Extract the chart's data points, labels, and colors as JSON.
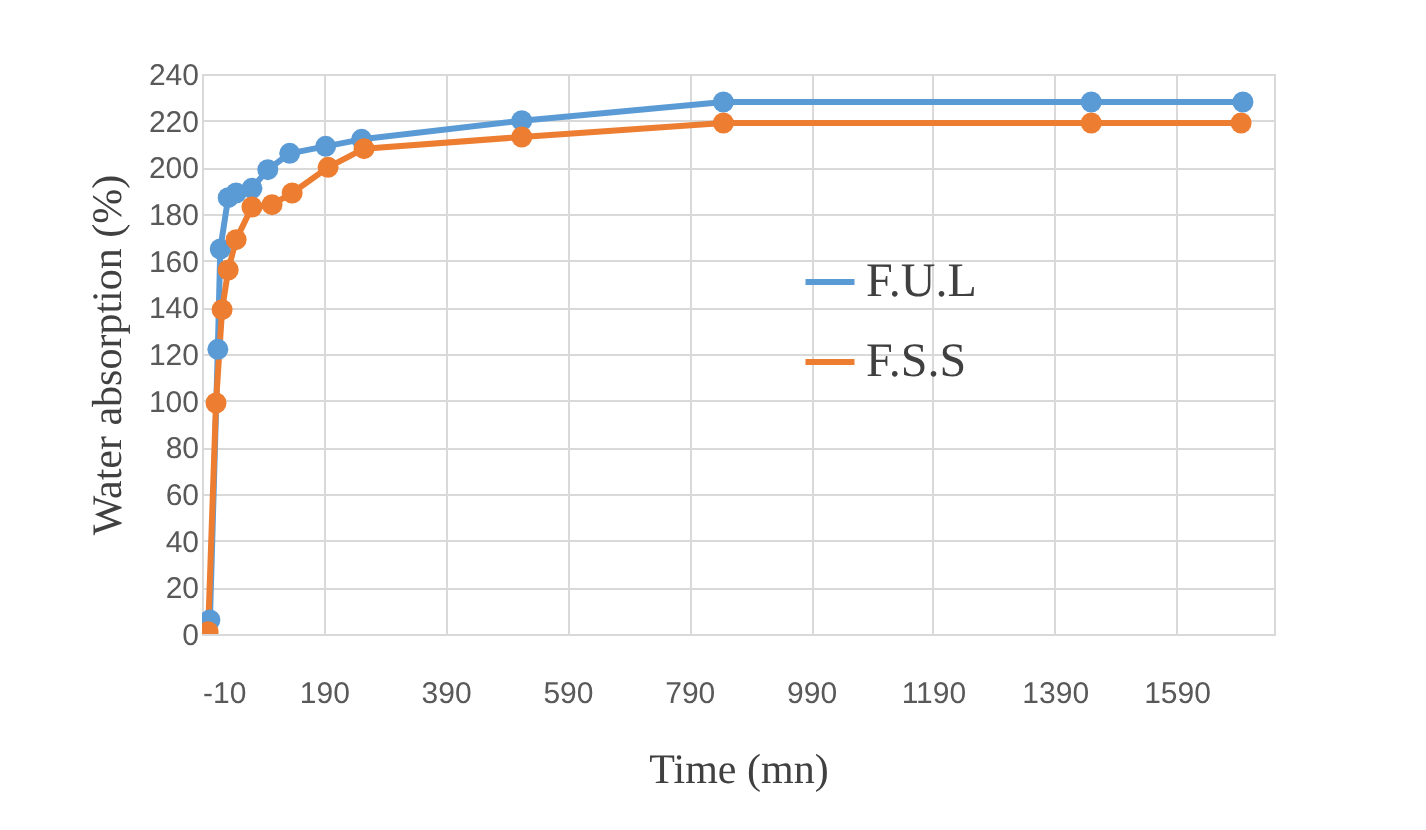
{
  "chart_data": {
    "type": "line",
    "xlabel": "Time (mn)",
    "ylabel": "Water absorption (%)",
    "xlim": [
      -10,
      1750
    ],
    "xticks": [
      -10,
      190,
      390,
      590,
      790,
      990,
      1190,
      1390,
      1590
    ],
    "ylim": [
      0,
      240
    ],
    "yticks": [
      0,
      20,
      40,
      60,
      80,
      100,
      120,
      140,
      160,
      180,
      200,
      220,
      240
    ],
    "grid": true,
    "legend": "right",
    "marker": "circle",
    "line_style": "solid",
    "series": [
      {
        "name": "F.U.L",
        "color": "#5b9bd5",
        "x": [
          3,
          16,
          20,
          33,
          46,
          72,
          98,
          134,
          193,
          252,
          515,
          846,
          1450,
          1699
        ],
        "values": [
          6,
          122,
          165,
          187,
          189,
          191,
          199,
          206,
          209,
          212,
          220,
          228,
          228,
          228
        ]
      },
      {
        "name": "F.S.S",
        "color": "#ed7d31",
        "x": [
          0,
          13,
          23,
          33,
          46,
          72,
          105,
          138,
          197,
          256,
          515,
          846,
          1450,
          1696
        ],
        "values": [
          1,
          99,
          139,
          156,
          169,
          183,
          184,
          189,
          200,
          208,
          213,
          219,
          219,
          219
        ]
      }
    ]
  }
}
